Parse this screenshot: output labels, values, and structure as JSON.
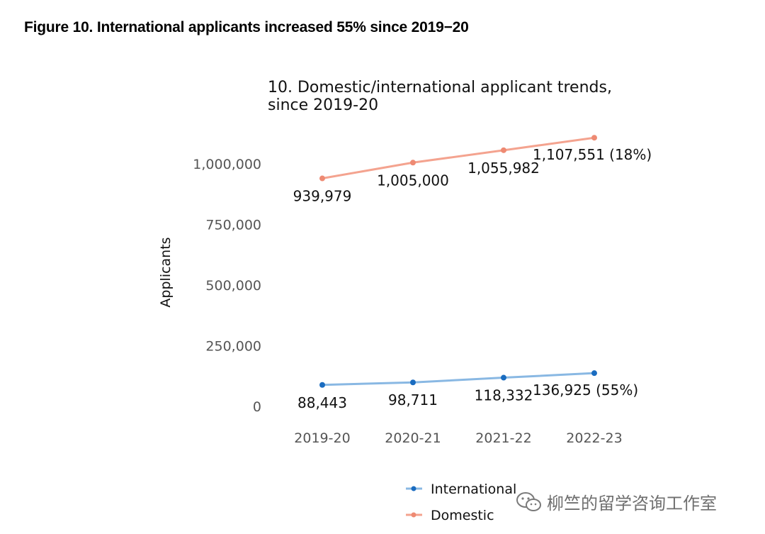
{
  "figure_title": "Figure 10. International applicants increased 55% since 2019−20",
  "watermark": {
    "text": "柳竺的留学咨询工作室",
    "icon": "wechat-icon"
  },
  "chart_data": {
    "type": "line",
    "title": [
      "10. Domestic/international applicant trends,",
      "since 2019-20"
    ],
    "ylabel": "Applicants",
    "xlabel": "",
    "categories": [
      "2019-20",
      "2020-21",
      "2021-22",
      "2022-23"
    ],
    "ylim": [
      0,
      1200000
    ],
    "yticks": [
      0,
      250000,
      500000,
      750000,
      1000000
    ],
    "ytick_labels": [
      "0",
      "250,000",
      "500,000",
      "750,000",
      "1,000,000"
    ],
    "grid": false,
    "legend_position": "bottom",
    "series": [
      {
        "name": "Domestic",
        "color": "#f4a38f",
        "marker_color": "#ee8a73",
        "values": [
          939979,
          1005000,
          1055982,
          1107551
        ],
        "labels": [
          "939,979",
          "1,005,000",
          "1,055,982",
          "1,107,551 (18%)"
        ]
      },
      {
        "name": "International",
        "color": "#89b8e3",
        "marker_color": "#1a6cc0",
        "values": [
          88443,
          98711,
          118332,
          136925
        ],
        "labels": [
          "88,443",
          "98,711",
          "118,332",
          "136,925 (55%)"
        ]
      }
    ],
    "legend": [
      "International",
      "Domestic"
    ]
  }
}
